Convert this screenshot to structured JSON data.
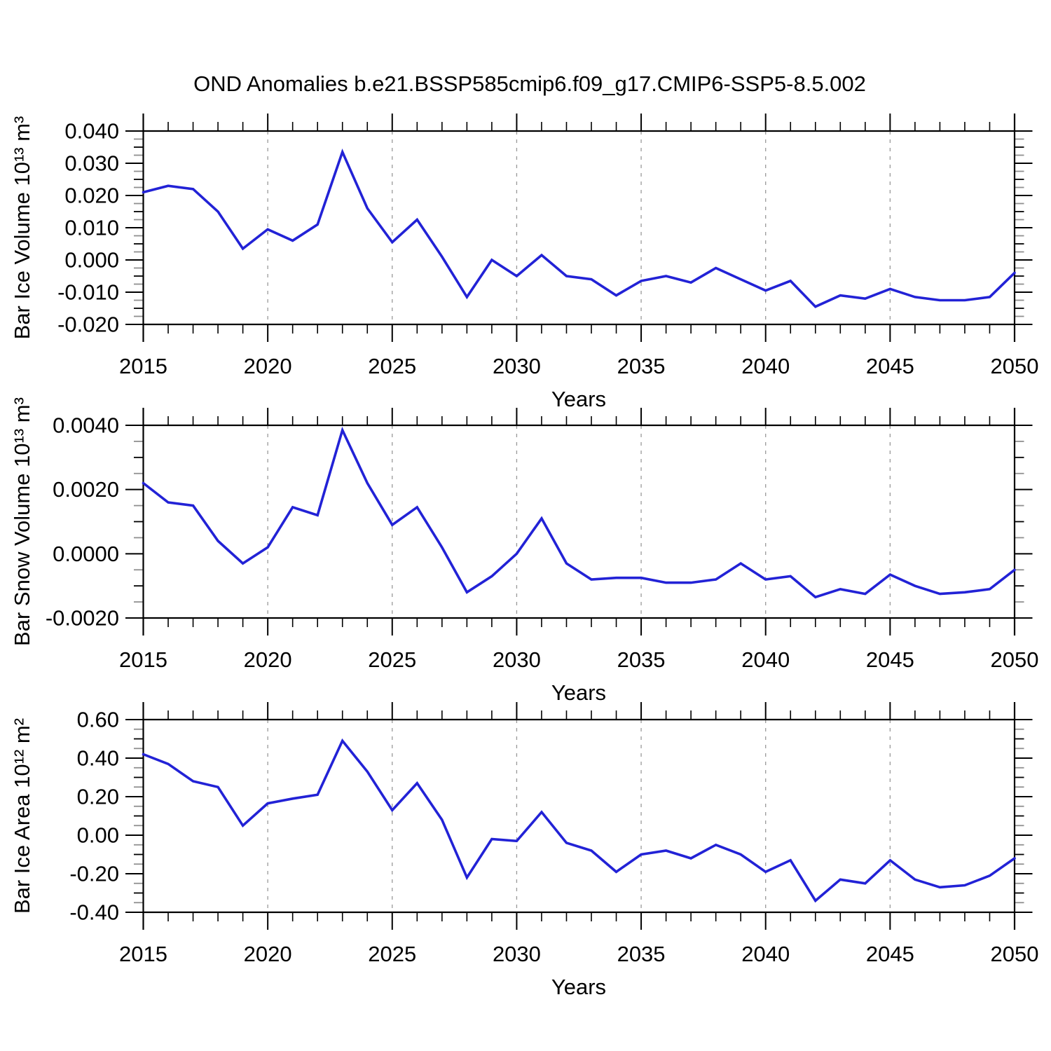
{
  "title": "OND Anomalies b.e21.BSSP585cmip6.f09_g17.CMIP6-SSP5-8.5.002",
  "line_color": "#2222d6",
  "grid_color": "#999999",
  "axis_color": "#000000",
  "chart_data": [
    {
      "type": "line",
      "id": "ice-volume",
      "ylabel": "Bar Ice Volume 10¹³ m³",
      "xlabel": "Years",
      "xlim": [
        2015,
        2050
      ],
      "ylim": [
        -0.02,
        0.04
      ],
      "grid_x": [
        2020,
        2025,
        2030,
        2035,
        2040,
        2045
      ],
      "xticks": {
        "values": [
          2015,
          2020,
          2025,
          2030,
          2035,
          2040,
          2045,
          2050
        ],
        "labels": [
          "2015",
          "2020",
          "2025",
          "2030",
          "2035",
          "2040",
          "2045",
          "2050"
        ]
      },
      "yticks": {
        "values": [
          0.04,
          0.03,
          0.02,
          0.01,
          0.0,
          -0.01,
          -0.02
        ],
        "labels": [
          "0.040",
          "0.030",
          "0.020",
          "0.010",
          "0.000",
          "-0.010",
          "-0.020"
        ]
      },
      "y_minor_step": 0.0025,
      "x": [
        2015,
        2016,
        2017,
        2018,
        2019,
        2020,
        2021,
        2022,
        2023,
        2024,
        2025,
        2026,
        2027,
        2028,
        2029,
        2030,
        2031,
        2032,
        2033,
        2034,
        2035,
        2036,
        2037,
        2038,
        2039,
        2040,
        2041,
        2042,
        2043,
        2044,
        2045,
        2046,
        2047,
        2048,
        2049,
        2050
      ],
      "values": [
        0.021,
        0.023,
        0.022,
        0.015,
        0.0035,
        0.0095,
        0.006,
        0.011,
        0.0335,
        0.016,
        0.0055,
        0.0125,
        0.001,
        -0.0115,
        0.0,
        -0.005,
        0.0015,
        -0.005,
        -0.006,
        -0.011,
        -0.0065,
        -0.005,
        -0.007,
        -0.0025,
        -0.006,
        -0.0095,
        -0.0065,
        -0.0145,
        -0.011,
        -0.012,
        -0.009,
        -0.0115,
        -0.0125,
        -0.0125,
        -0.0115,
        -0.004
      ]
    },
    {
      "type": "line",
      "id": "snow-volume",
      "ylabel": "Bar Snow Volume 10¹³ m³",
      "xlabel": "Years",
      "xlim": [
        2015,
        2050
      ],
      "ylim": [
        -0.002,
        0.004
      ],
      "grid_x": [
        2020,
        2025,
        2030,
        2035,
        2040,
        2045
      ],
      "xticks": {
        "values": [
          2015,
          2020,
          2025,
          2030,
          2035,
          2040,
          2045,
          2050
        ],
        "labels": [
          "2015",
          "2020",
          "2025",
          "2030",
          "2035",
          "2040",
          "2045",
          "2050"
        ]
      },
      "yticks": {
        "values": [
          0.004,
          0.002,
          0.0,
          -0.002
        ],
        "labels": [
          "0.0040",
          "0.0020",
          "0.0000",
          "-0.0020"
        ]
      },
      "y_minor_step": 0.0005,
      "x": [
        2015,
        2016,
        2017,
        2018,
        2019,
        2020,
        2021,
        2022,
        2023,
        2024,
        2025,
        2026,
        2027,
        2028,
        2029,
        2030,
        2031,
        2032,
        2033,
        2034,
        2035,
        2036,
        2037,
        2038,
        2039,
        2040,
        2041,
        2042,
        2043,
        2044,
        2045,
        2046,
        2047,
        2048,
        2049,
        2050
      ],
      "values": [
        0.0022,
        0.0016,
        0.0015,
        0.0004,
        -0.0003,
        0.0002,
        0.00145,
        0.0012,
        0.00385,
        0.0022,
        0.0009,
        0.00145,
        0.0002,
        -0.0012,
        -0.0007,
        0.0,
        0.0011,
        -0.0003,
        -0.0008,
        -0.00075,
        -0.00075,
        -0.0009,
        -0.0009,
        -0.0008,
        -0.0003,
        -0.0008,
        -0.0007,
        -0.00135,
        -0.0011,
        -0.00125,
        -0.00065,
        -0.001,
        -0.00125,
        -0.0012,
        -0.0011,
        -0.0005
      ]
    },
    {
      "type": "line",
      "id": "ice-area",
      "ylabel": "Bar Ice Area 10¹² m²",
      "xlabel": "Years",
      "xlim": [
        2015,
        2050
      ],
      "ylim": [
        -0.4,
        0.6
      ],
      "grid_x": [
        2020,
        2025,
        2030,
        2035,
        2040,
        2045
      ],
      "xticks": {
        "values": [
          2015,
          2020,
          2025,
          2030,
          2035,
          2040,
          2045,
          2050
        ],
        "labels": [
          "2015",
          "2020",
          "2025",
          "2030",
          "2035",
          "2040",
          "2045",
          "2050"
        ]
      },
      "yticks": {
        "values": [
          0.6,
          0.4,
          0.2,
          0.0,
          -0.2,
          -0.4
        ],
        "labels": [
          "0.60",
          "0.40",
          "0.20",
          "0.00",
          "-0.20",
          "-0.40"
        ]
      },
      "y_minor_step": 0.05,
      "x": [
        2015,
        2016,
        2017,
        2018,
        2019,
        2020,
        2021,
        2022,
        2023,
        2024,
        2025,
        2026,
        2027,
        2028,
        2029,
        2030,
        2031,
        2032,
        2033,
        2034,
        2035,
        2036,
        2037,
        2038,
        2039,
        2040,
        2041,
        2042,
        2043,
        2044,
        2045,
        2046,
        2047,
        2048,
        2049,
        2050
      ],
      "values": [
        0.42,
        0.37,
        0.28,
        0.25,
        0.05,
        0.165,
        0.19,
        0.21,
        0.49,
        0.33,
        0.13,
        0.27,
        0.08,
        -0.22,
        -0.02,
        -0.03,
        0.12,
        -0.04,
        -0.08,
        -0.19,
        -0.1,
        -0.08,
        -0.12,
        -0.05,
        -0.1,
        -0.19,
        -0.13,
        -0.34,
        -0.23,
        -0.25,
        -0.13,
        -0.23,
        -0.27,
        -0.26,
        -0.21,
        -0.12
      ]
    }
  ]
}
